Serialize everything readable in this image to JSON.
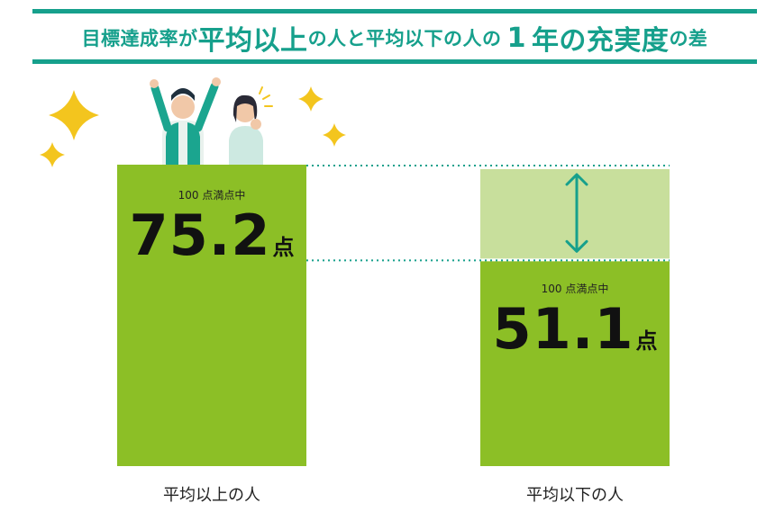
{
  "title": {
    "parts": [
      {
        "text": "目標達成率が",
        "size": "s"
      },
      {
        "text": "平均以上",
        "size": "l"
      },
      {
        "text": "の人と平均以下の人の",
        "size": "s"
      },
      {
        "text": "1",
        "size": "n"
      },
      {
        "text": "年の充実度",
        "size": "l"
      },
      {
        "text": "の差",
        "size": "s"
      }
    ]
  },
  "colors": {
    "teal": "#16a08c",
    "bar": "#8cbf26",
    "gap": "#c8df9c",
    "text": "#111111",
    "star": "#f3c51e"
  },
  "chart_data": {
    "type": "bar",
    "categories": [
      "平均以上の人",
      "平均以下の人"
    ],
    "values": [
      75.2,
      51.1
    ],
    "value_labels": [
      "75.2",
      "51.1"
    ],
    "unit": "点",
    "note": "100 点満点中",
    "ylim": [
      0,
      75.2
    ],
    "grid": false
  },
  "icons": [
    "sparkle-icon",
    "people-cheering-illustration",
    "double-arrow-icon"
  ]
}
